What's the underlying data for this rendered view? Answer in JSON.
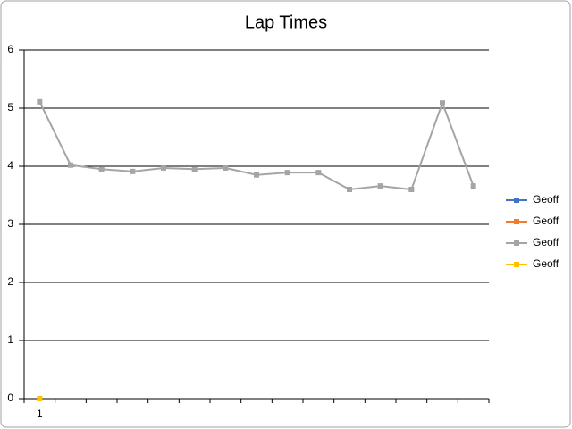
{
  "chart_data": {
    "type": "line",
    "title": "Lap Times",
    "categories": [
      "1",
      null,
      null,
      null,
      null,
      null,
      null,
      null,
      null,
      null,
      null,
      null,
      null,
      null,
      null
    ],
    "series": [
      {
        "name": "Geoff",
        "color": "#4472c4",
        "values": [
          null,
          null,
          null,
          null,
          null,
          null,
          null,
          null,
          null,
          null,
          null,
          null,
          null,
          null,
          null
        ]
      },
      {
        "name": "Geoff",
        "color": "#ed7d31",
        "values": [
          null,
          null,
          null,
          null,
          null,
          null,
          null,
          null,
          null,
          null,
          null,
          null,
          null,
          null,
          null
        ]
      },
      {
        "name": "Geoff",
        "color": "#a5a5a5",
        "values": [
          5.11,
          4.02,
          3.95,
          3.91,
          3.97,
          3.95,
          3.97,
          3.85,
          3.89,
          3.89,
          3.6,
          3.66,
          3.6,
          5.09,
          3.66
        ]
      },
      {
        "name": "Geoff",
        "color": "#ffc000",
        "values": [
          0,
          null,
          null,
          null,
          null,
          null,
          null,
          null,
          null,
          null,
          null,
          null,
          null,
          null,
          null
        ]
      }
    ],
    "ylim": [
      0,
      6
    ],
    "yticks": [
      0,
      1,
      2,
      3,
      4,
      5,
      6
    ],
    "grid": true,
    "legend": "right"
  }
}
